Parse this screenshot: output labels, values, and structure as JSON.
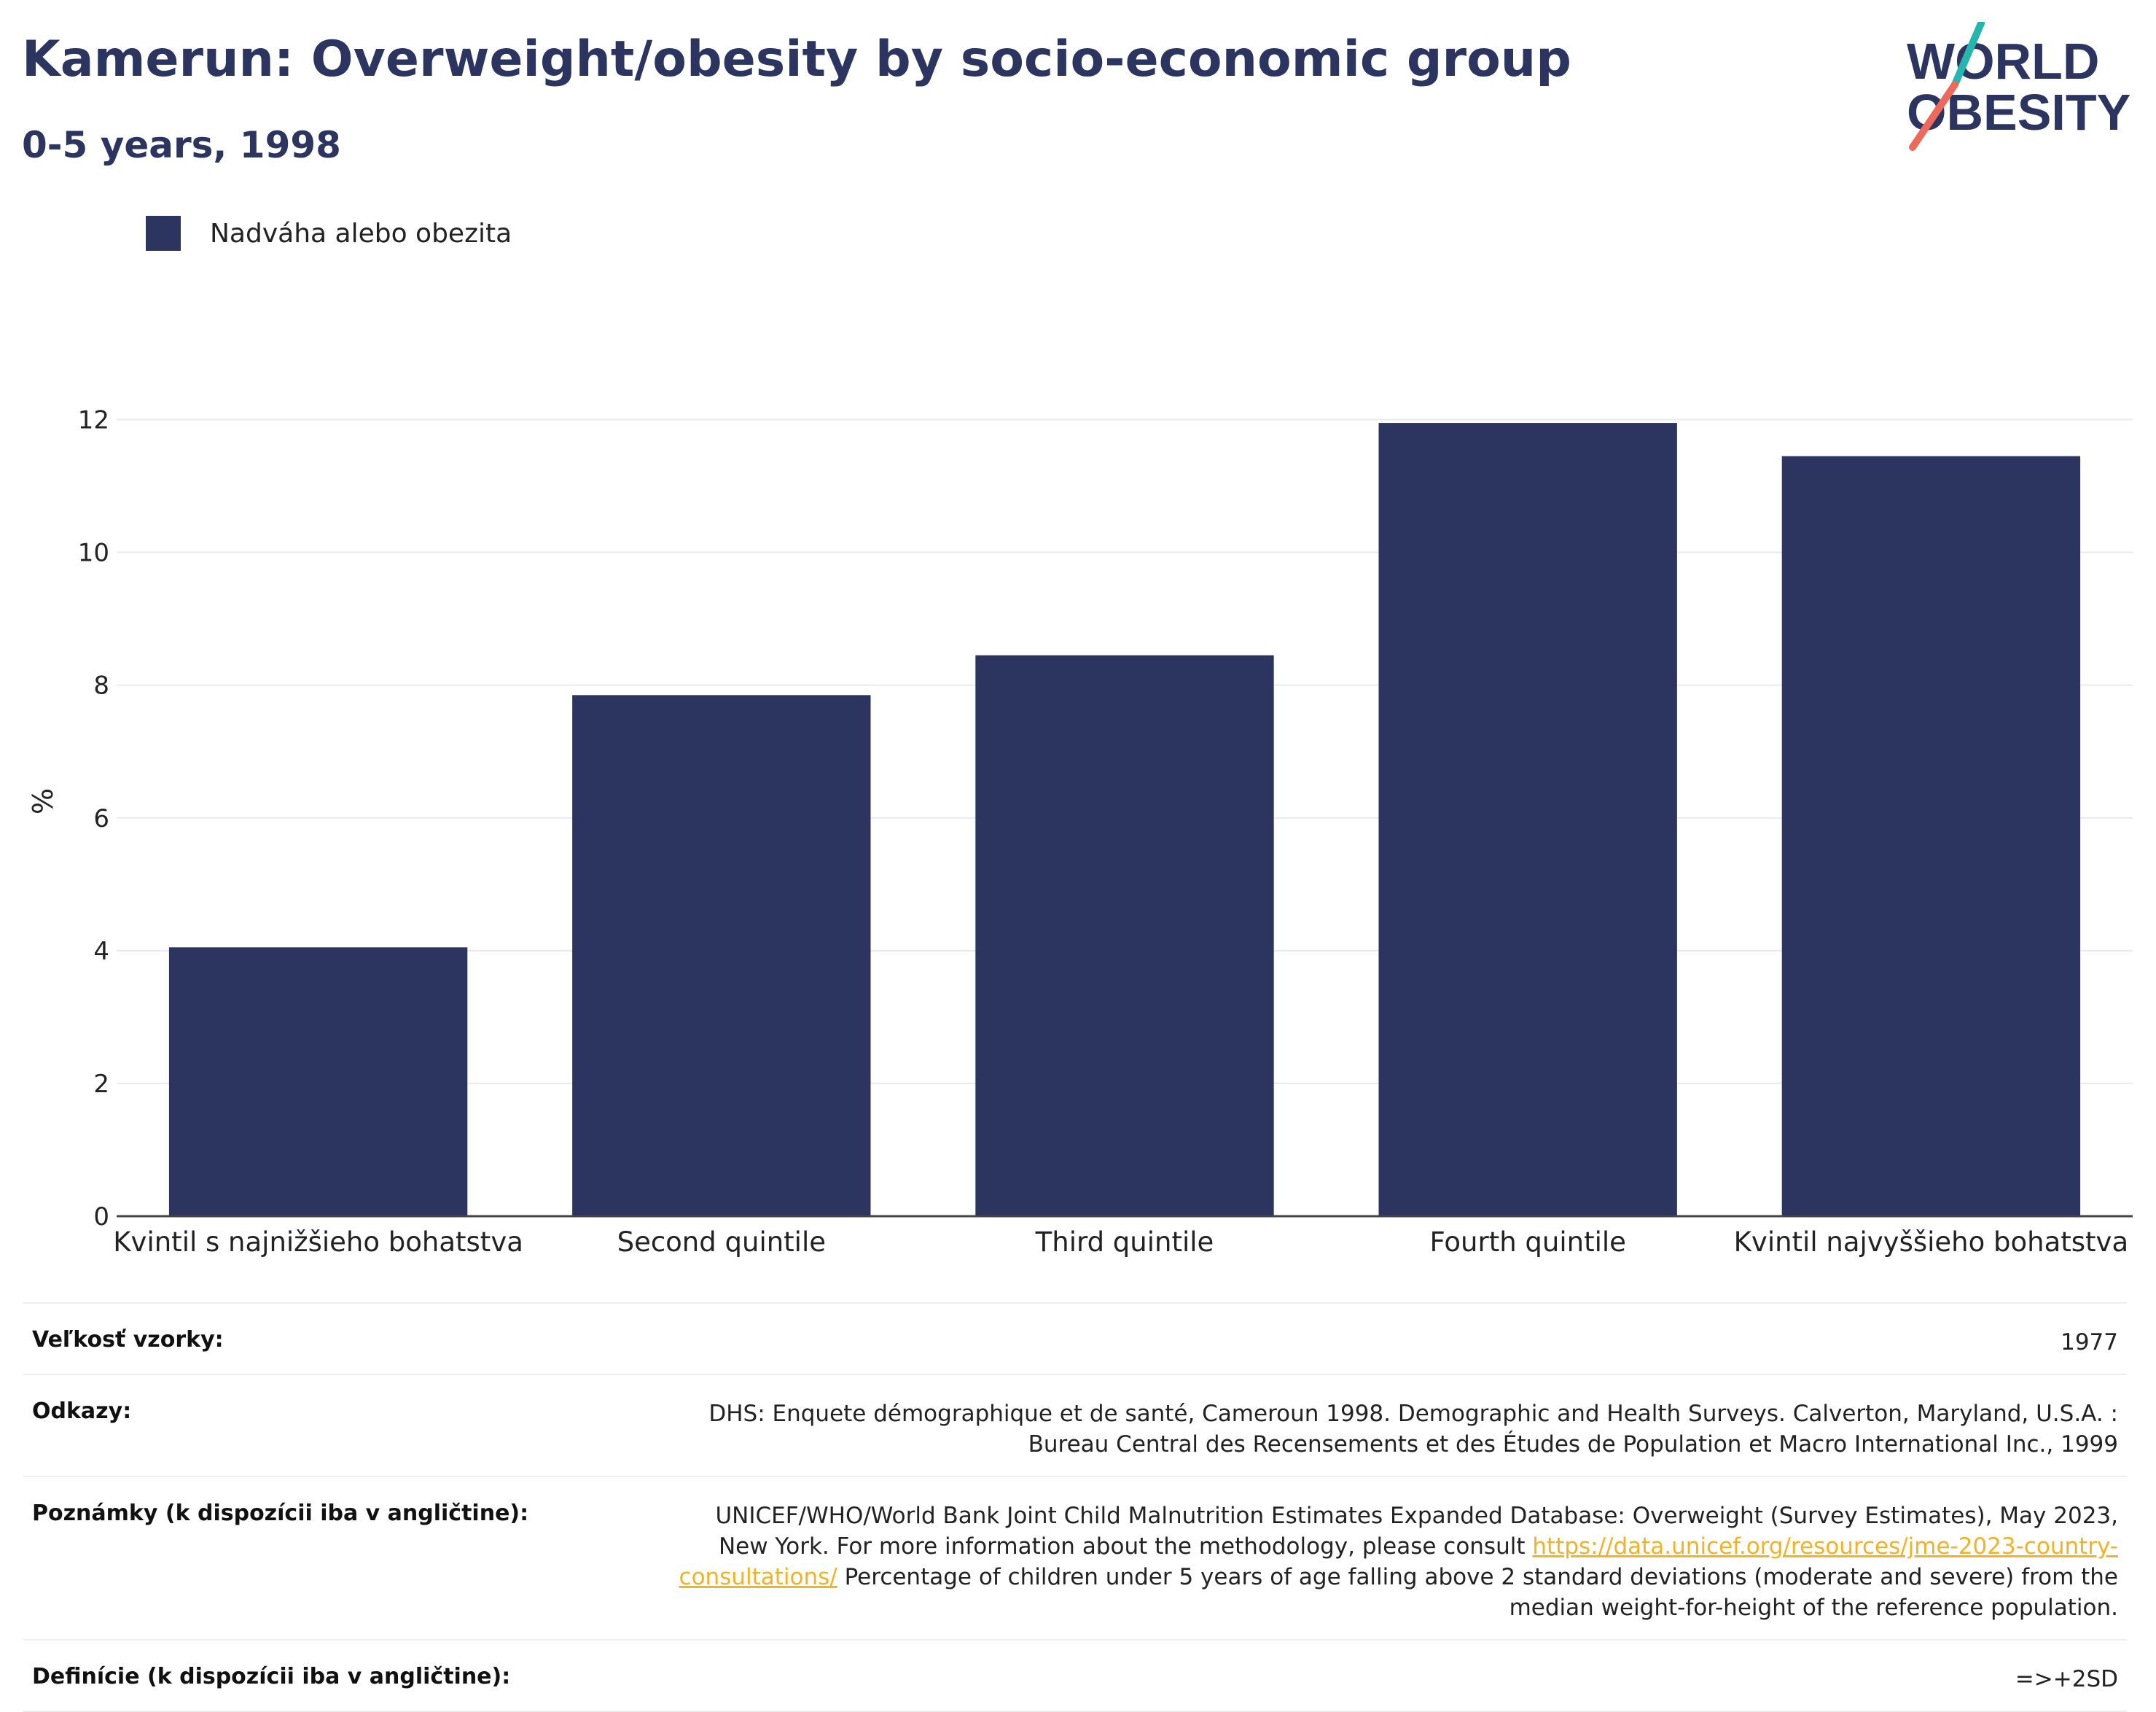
{
  "header": {
    "title": "Kamerun: Overweight/obesity by socio-economic group",
    "subtitle": "0-5 years, 1998"
  },
  "logo": {
    "line1": "WORLD",
    "line2": "OBESITY",
    "colors": {
      "text": "#2b3560",
      "slash_top": "#27b5b0",
      "slash_bottom": "#ec6a5c"
    }
  },
  "legend": {
    "label": "Nadváha alebo obezita",
    "color": "#2b3560"
  },
  "chart_data": {
    "type": "bar",
    "categories": [
      "Kvintil s najnižšieho bohatstva",
      "Second quintile",
      "Third quintile",
      "Fourth quintile",
      "Kvintil najvyššieho bohatstva"
    ],
    "series": [
      {
        "name": "Nadváha alebo obezita",
        "values": [
          4.05,
          7.85,
          8.45,
          11.95,
          11.45
        ],
        "color": "#2b3560"
      }
    ],
    "ylabel": "%",
    "xlabel": "",
    "ylim": [
      0,
      12.5
    ],
    "yticks": [
      0,
      2,
      4,
      6,
      8,
      10,
      12
    ],
    "grid": true
  },
  "info": {
    "sample_size": {
      "label": "Veľkosť vzorky:",
      "value": "1977"
    },
    "references": {
      "label": "Odkazy:",
      "value": "DHS: Enquete démographique et de santé, Cameroun 1998. Demographic and Health Surveys. Calverton, Maryland, U.S.A. : Bureau Central des Recensements et des Études de Population et Macro International Inc., 1999"
    },
    "notes": {
      "label": "Poznámky (k dispozícii iba v angličtine):",
      "text_before": "UNICEF/WHO/World Bank Joint Child Malnutrition Estimates Expanded Database: Overweight (Survey Estimates), May 2023, New York. For more information about the methodology, please consult",
      "link": "https://data.unicef.org/resources/jme-2023-country-consultations/",
      "text_after": "Percentage of children under 5 years of age falling above 2 standard deviations (moderate and severe) from the median weight-for-height of the reference population."
    },
    "definitions": {
      "label": "Definície (k dispozícii iba v angličtine):",
      "value": "=>+2SD"
    }
  }
}
